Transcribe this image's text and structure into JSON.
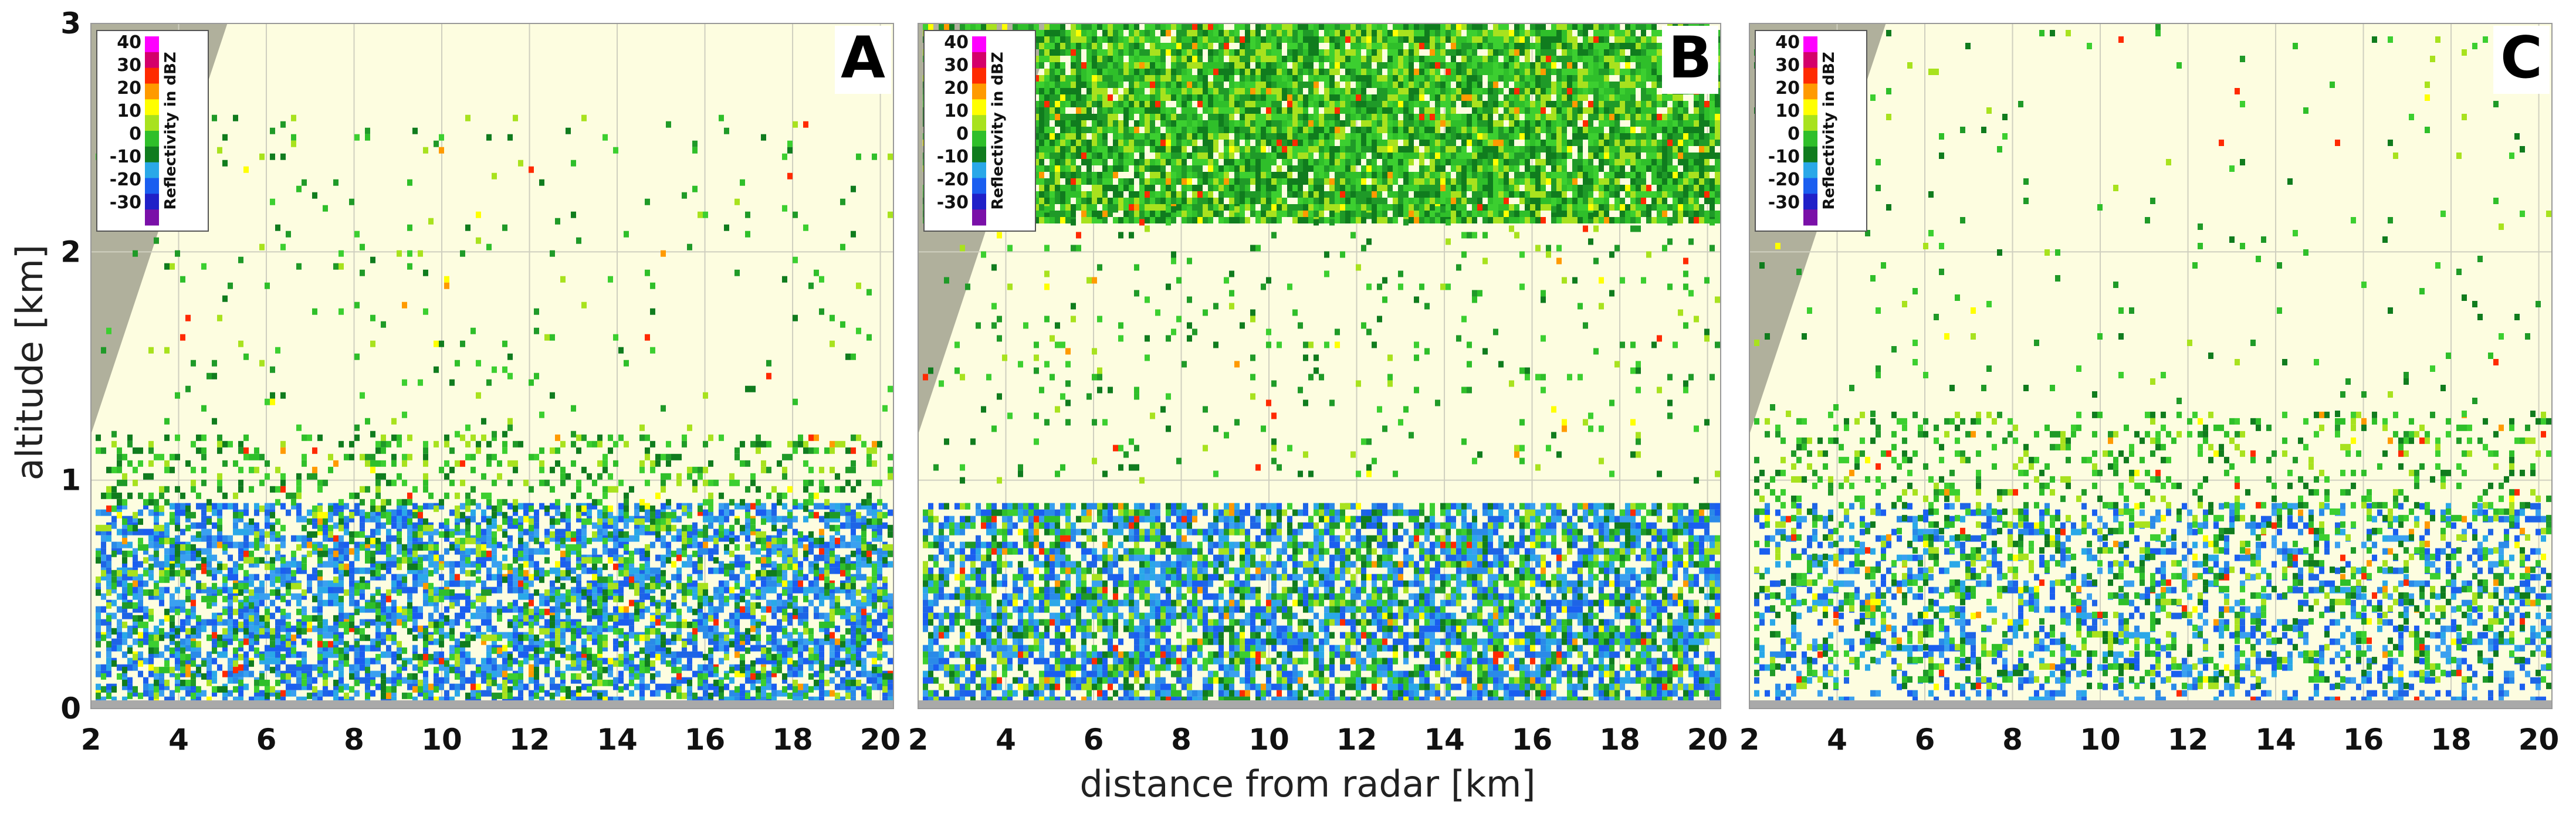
{
  "figure": {
    "xlabel": "distance from radar [km]",
    "ylabel": "altitude [km]"
  },
  "chart_data": {
    "type": "heatmap",
    "quantity": "Reflectivity in dBZ",
    "x_range": [
      2,
      20.3
    ],
    "y_range": [
      0,
      3
    ],
    "x_ticks": [
      2,
      4,
      6,
      8,
      10,
      12,
      14,
      16,
      18,
      20
    ],
    "y_ticks": [
      0,
      1,
      2,
      3
    ],
    "x_tick_labels": [
      "2",
      "4",
      "6",
      "8",
      "10",
      "12",
      "14",
      "16",
      "18",
      "20"
    ],
    "y_tick_labels": [
      "0",
      "1",
      "2",
      "3"
    ],
    "grid": true,
    "colorbar": {
      "title": "Reflectivity in dBZ",
      "labels": [
        "40",
        "30",
        "20",
        "10",
        "0",
        "-10",
        "-20",
        "-30"
      ],
      "values": [
        40,
        30,
        20,
        10,
        0,
        -10,
        -20,
        -30
      ],
      "colors": [
        "#ff00ff",
        "#d4006a",
        "#ff2a00",
        "#ff9a00",
        "#ffff00",
        "#a8e21e",
        "#2fbf2a",
        "#107c1e",
        "#2aa8e8",
        "#1a5ef0",
        "#2020c8",
        "#7a10a8"
      ]
    },
    "colors": {
      "background": "#fdfde0",
      "blocked": "#b0b09c",
      "ground": "#a9a9a9",
      "grid": "#cfcfbf"
    },
    "panels": [
      {
        "label": "A",
        "layers": [
          [
            0.05,
            0.9,
            0.6,
            "blue"
          ],
          [
            0.05,
            1.2,
            0.25,
            "green"
          ],
          [
            1.2,
            2.6,
            0.03,
            "green"
          ]
        ]
      },
      {
        "label": "B",
        "layers": [
          [
            0.05,
            0.9,
            0.6,
            "blue"
          ],
          [
            0.05,
            0.9,
            0.3,
            "green"
          ],
          [
            2.15,
            3.0,
            0.9,
            "green"
          ],
          [
            1.0,
            2.2,
            0.05,
            "green"
          ]
        ]
      },
      {
        "label": "C",
        "layers": [
          [
            0.05,
            0.9,
            0.3,
            "blue"
          ],
          [
            0.1,
            1.3,
            0.22,
            "green"
          ],
          [
            1.3,
            3.0,
            0.02,
            "green"
          ]
        ]
      }
    ]
  }
}
